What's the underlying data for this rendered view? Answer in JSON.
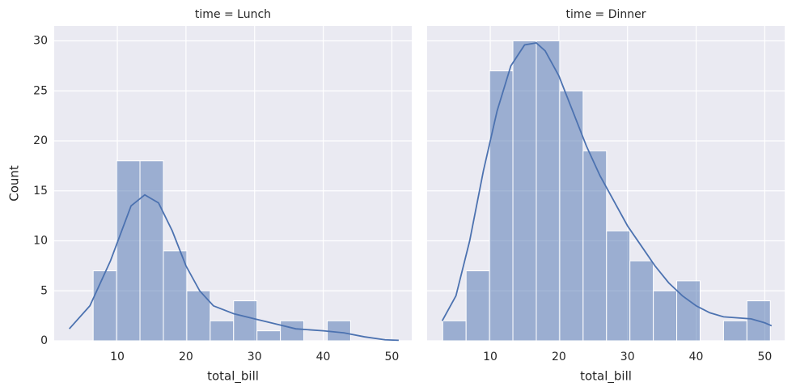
{
  "chart_data": [
    {
      "type": "histogram",
      "title": "time = Lunch",
      "xlabel": "total_bill",
      "ylabel": "Count",
      "bins": [
        3.07,
        6.48,
        9.89,
        13.3,
        16.71,
        20.12,
        23.53,
        26.94,
        30.35,
        33.76,
        37.17,
        40.58,
        43.99,
        47.4,
        50.81
      ],
      "values": [
        0,
        7,
        18,
        18,
        9,
        5,
        2,
        4,
        1,
        2,
        0,
        2,
        0,
        0
      ],
      "color": "#4c72b0",
      "kde": {
        "x": [
          3,
          6,
          9,
          12,
          14,
          16,
          18,
          20,
          22,
          24,
          27,
          30,
          33,
          36,
          40,
          43,
          46,
          49,
          51
        ],
        "y": [
          1.2,
          3.5,
          8,
          13.5,
          14.6,
          13.8,
          11,
          7.5,
          5,
          3.5,
          2.7,
          2.2,
          1.7,
          1.2,
          1,
          0.8,
          0.4,
          0.1,
          0.05
        ]
      },
      "xlim": [
        0.8,
        52.9
      ],
      "ylim": [
        0,
        31.5
      ],
      "xticks": [
        10,
        20,
        30,
        40,
        50
      ],
      "yticks": [
        0,
        5,
        10,
        15,
        20,
        25,
        30
      ],
      "grid": true
    },
    {
      "type": "histogram",
      "title": "time = Dinner",
      "xlabel": "total_bill",
      "bins": [
        3.07,
        6.48,
        9.89,
        13.3,
        16.71,
        20.12,
        23.53,
        26.94,
        30.35,
        33.76,
        37.17,
        40.58,
        43.99,
        47.4,
        50.81
      ],
      "values": [
        2,
        7,
        27,
        30,
        30,
        25,
        19,
        11,
        8,
        5,
        6,
        0,
        2,
        4
      ],
      "color": "#4c72b0",
      "kde": {
        "x": [
          3,
          5,
          7,
          9,
          11,
          13,
          15,
          16.7,
          18,
          20,
          22,
          24,
          26,
          28,
          30,
          32,
          34,
          36,
          38,
          40,
          42,
          44,
          46,
          48,
          50,
          51
        ],
        "y": [
          2,
          4.5,
          10,
          17,
          23,
          27.5,
          29.6,
          29.8,
          29,
          26.5,
          23,
          19.5,
          16.5,
          14,
          11.5,
          9.5,
          7.5,
          5.8,
          4.5,
          3.5,
          2.8,
          2.4,
          2.3,
          2.2,
          1.8,
          1.5
        ]
      },
      "xlim": [
        0.8,
        52.9
      ],
      "ylim": [
        0,
        31.5
      ],
      "xticks": [
        10,
        20,
        30,
        40,
        50
      ],
      "yticks": [
        0,
        5,
        10,
        15,
        20,
        25,
        30
      ],
      "grid": true
    }
  ]
}
